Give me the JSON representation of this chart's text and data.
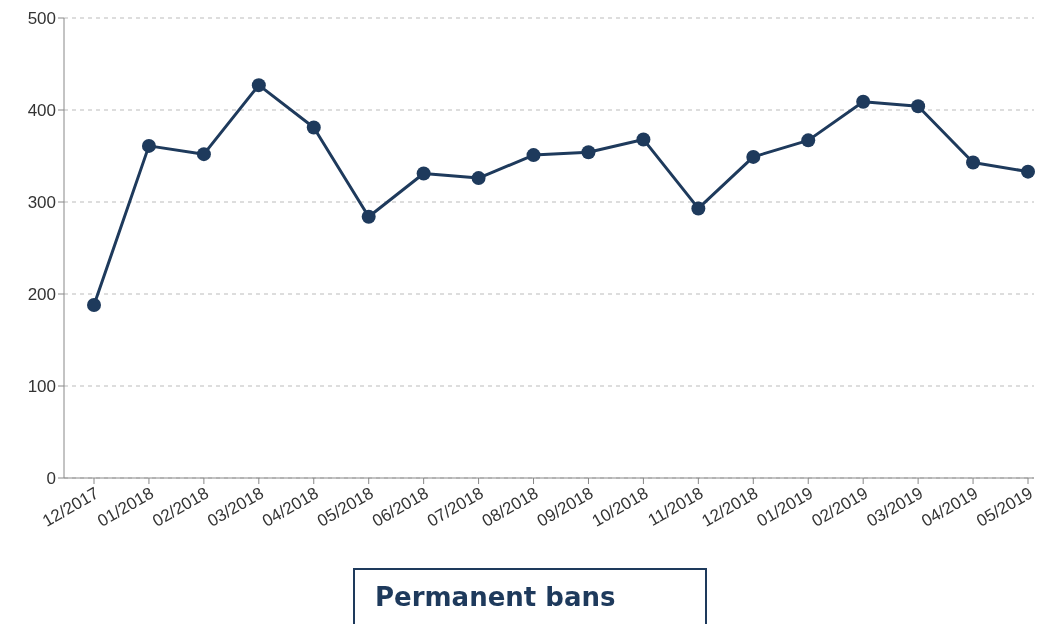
{
  "chart_data": {
    "type": "line",
    "title": "Permanent bans",
    "categories": [
      "12/2017",
      "01/2018",
      "02/2018",
      "03/2018",
      "04/2018",
      "05/2018",
      "06/2018",
      "07/2018",
      "08/2018",
      "09/2018",
      "10/2018",
      "11/2018",
      "12/2018",
      "01/2019",
      "02/2019",
      "03/2019",
      "04/2019",
      "05/2019"
    ],
    "series": [
      {
        "color": "#1e3a5c",
        "values": [
          188,
          361,
          352,
          427,
          381,
          284,
          331,
          326,
          351,
          354,
          368,
          293,
          349,
          367,
          409,
          404,
          343,
          333
        ]
      }
    ],
    "ylim": [
      0,
      500
    ],
    "yticks": [
      0,
      100,
      200,
      300,
      400,
      500
    ],
    "grid": "y",
    "marker": "circle",
    "line_style": "solid"
  }
}
